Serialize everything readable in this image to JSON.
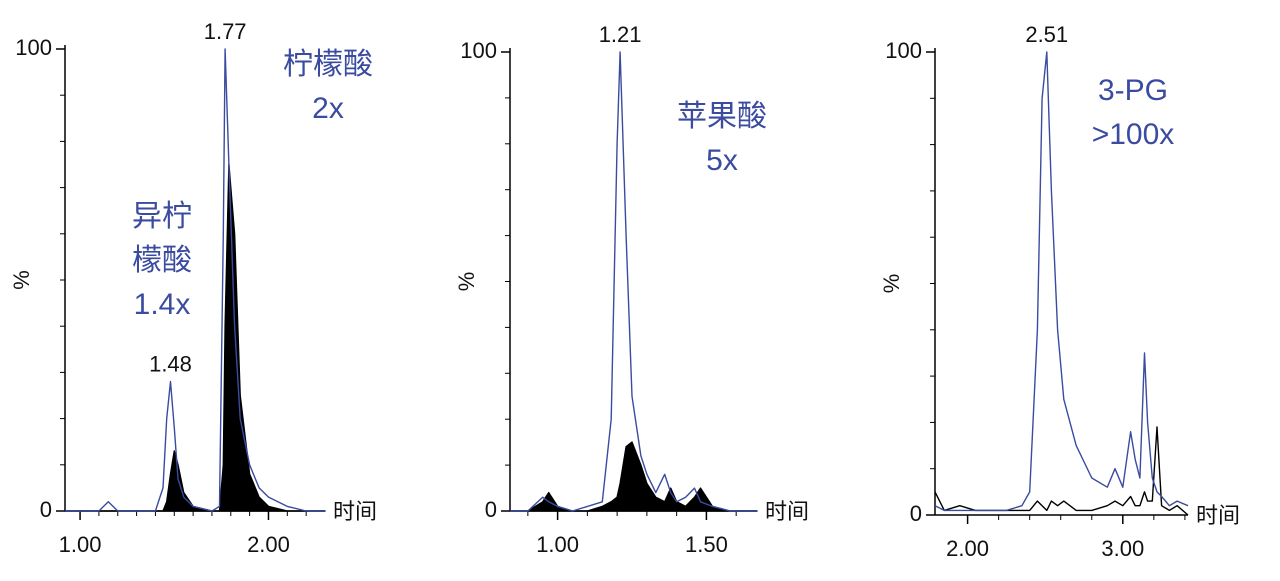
{
  "chart_data": [
    {
      "type": "line",
      "x_label": "时间",
      "y_label": "%",
      "x": [
        0.92,
        1.0,
        1.1,
        1.15,
        1.2,
        1.3,
        1.4,
        1.44,
        1.46,
        1.48,
        1.5,
        1.52,
        1.55,
        1.6,
        1.7,
        1.74,
        1.76,
        1.77,
        1.79,
        1.82,
        1.85,
        1.9,
        1.95,
        2.0,
        2.1,
        2.2,
        2.3
      ],
      "series": [
        {
          "color": "#3a4ba0",
          "fill": false,
          "values": [
            0,
            0,
            0,
            2,
            0,
            0,
            0,
            5,
            20,
            28,
            18,
            7,
            3,
            1,
            0,
            1,
            60,
            100,
            75,
            40,
            20,
            10,
            5,
            3,
            1,
            0,
            0
          ]
        },
        {
          "color": "#000000",
          "fill": true,
          "values": [
            0,
            0,
            0,
            0,
            0,
            0,
            0,
            0,
            2,
            8,
            13,
            10,
            4,
            1,
            0,
            0,
            10,
            40,
            75,
            60,
            25,
            8,
            3,
            1,
            0,
            0,
            0
          ]
        }
      ],
      "xlim": [
        0.92,
        2.3
      ],
      "ylim": [
        0,
        100
      ],
      "xticks": [
        {
          "value": 1,
          "label": "1.00"
        },
        {
          "value": 2,
          "label": "2.00"
        }
      ],
      "xminorticks": [
        1.1,
        1.2,
        1.3,
        1.4,
        1.5,
        1.6,
        1.7,
        1.8,
        1.9,
        2.1,
        2.2
      ],
      "yticks": [
        0,
        100
      ],
      "yminorticks": [
        10,
        20,
        30,
        40,
        50,
        60,
        70,
        80,
        90
      ],
      "peak_labels": [
        {
          "value": 1.48,
          "label": "1.48"
        },
        {
          "value": 1.77,
          "label": "1.77"
        }
      ],
      "annotations": [
        [
          "异柠",
          "檬酸",
          "1.4x"
        ],
        [
          "柠檬酸",
          "2x"
        ]
      ]
    },
    {
      "type": "line",
      "x_label": "时间",
      "y_label": "%",
      "x": [
        0.84,
        0.9,
        0.95,
        0.97,
        1.0,
        1.05,
        1.1,
        1.15,
        1.18,
        1.2,
        1.21,
        1.23,
        1.25,
        1.28,
        1.3,
        1.33,
        1.36,
        1.38,
        1.4,
        1.43,
        1.46,
        1.48,
        1.52,
        1.58,
        1.67
      ],
      "series": [
        {
          "color": "#3a4ba0",
          "fill": false,
          "values": [
            0,
            0,
            3,
            2,
            1,
            0,
            1,
            2,
            20,
            80,
            100,
            60,
            25,
            12,
            8,
            4,
            8,
            4,
            2,
            3,
            5,
            2,
            1,
            0,
            0
          ]
        },
        {
          "color": "#000000",
          "fill": true,
          "values": [
            0,
            0,
            2,
            4,
            1,
            0,
            0,
            1,
            2,
            3,
            6,
            14,
            15,
            10,
            6,
            3,
            2,
            5,
            2,
            1,
            3,
            5,
            1,
            0,
            0
          ]
        }
      ],
      "xlim": [
        0.84,
        1.67
      ],
      "ylim": [
        0,
        100
      ],
      "xticks": [
        {
          "value": 1,
          "label": "1.00"
        },
        {
          "value": 1.5,
          "label": "1.50"
        }
      ],
      "xminorticks": [
        0.9,
        1.1,
        1.2,
        1.3,
        1.4,
        1.6
      ],
      "yticks": [
        0,
        100
      ],
      "yminorticks": [
        10,
        20,
        30,
        40,
        50,
        60,
        70,
        80,
        90
      ],
      "peak_labels": [
        {
          "value": 1.21,
          "label": "1.21"
        }
      ],
      "annotations": [
        [
          "苹果酸",
          "5x"
        ]
      ]
    },
    {
      "type": "line",
      "x_label": "时间",
      "y_label": "%",
      "x": [
        1.79,
        1.85,
        1.95,
        2.05,
        2.15,
        2.25,
        2.35,
        2.4,
        2.45,
        2.48,
        2.51,
        2.54,
        2.58,
        2.62,
        2.7,
        2.8,
        2.9,
        2.95,
        3.0,
        3.05,
        3.08,
        3.11,
        3.14,
        3.16,
        3.19,
        3.22,
        3.25,
        3.3,
        3.35,
        3.42
      ],
      "series": [
        {
          "color": "#3a4ba0",
          "fill": false,
          "values": [
            2,
            1,
            1,
            1,
            1,
            1,
            2,
            5,
            40,
            90,
            100,
            70,
            40,
            25,
            15,
            8,
            6,
            10,
            6,
            18,
            12,
            8,
            35,
            20,
            8,
            5,
            4,
            2,
            3,
            2
          ]
        },
        {
          "color": "#000000",
          "fill": false,
          "values": [
            5,
            1,
            2,
            1,
            1,
            1,
            1,
            1,
            3,
            2,
            1,
            3,
            2,
            3,
            1,
            1,
            2,
            3,
            2,
            4,
            2,
            2,
            5,
            3,
            3,
            19,
            2,
            1,
            2,
            0
          ]
        }
      ],
      "xlim": [
        1.79,
        3.42
      ],
      "ylim": [
        0,
        100
      ],
      "xticks": [
        {
          "value": 2,
          "label": "2.00"
        },
        {
          "value": 3,
          "label": "3.00"
        }
      ],
      "xminorticks": [
        2.2,
        2.4,
        2.6,
        2.8,
        3.2,
        3.4
      ],
      "yticks": [
        0,
        100
      ],
      "yminorticks": [
        10,
        20,
        30,
        40,
        50,
        60,
        70,
        80,
        90
      ],
      "peak_labels": [
        {
          "value": 2.51,
          "label": "2.51"
        }
      ],
      "annotations": [
        [
          "3-PG",
          ">100x"
        ]
      ]
    }
  ]
}
